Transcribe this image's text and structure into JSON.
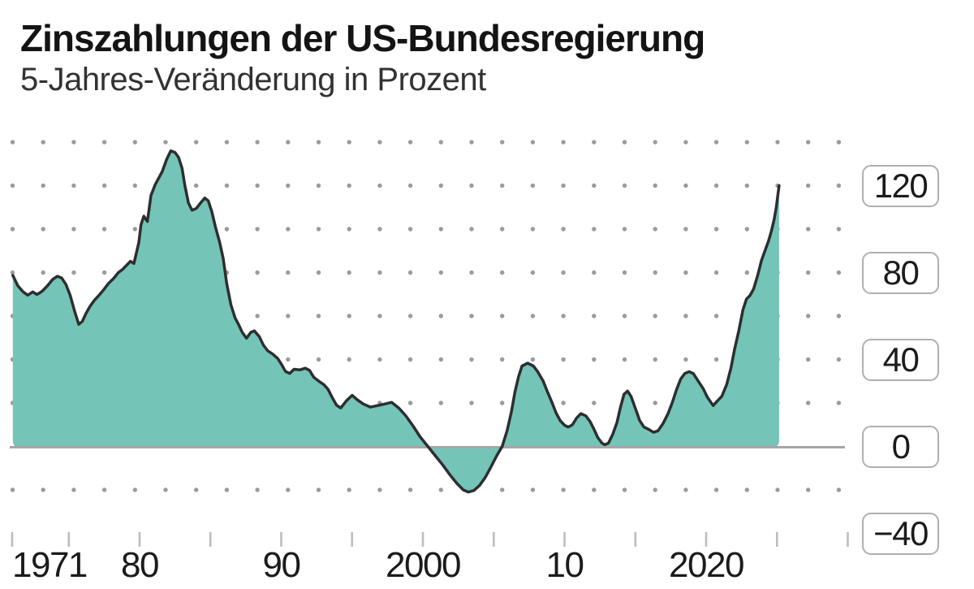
{
  "header": {
    "title": "Zinszahlungen der US-Bundesregierung",
    "subtitle": "5-Jahres-Veränderung in Prozent"
  },
  "colors": {
    "background": "#ffffff",
    "area_fill": "#74c4b8",
    "area_line": "#2e2e2e",
    "zero_axis": "#a6a6a6",
    "grid_dot": "#9b9b9b",
    "tick": "#bdbdbd",
    "label_box_border": "#b0b0b0",
    "label_text": "#1b1b1b"
  },
  "chart_data": {
    "type": "area",
    "title": "Zinszahlungen der US-Bundesregierung",
    "subtitle": "5-Jahres-Veränderung in Prozent",
    "ylabel": "Prozent",
    "grid": "dotted",
    "x_axis": {
      "range": [
        1971,
        2030
      ],
      "tick_years": [
        1971,
        1975,
        1980,
        1985,
        1990,
        1995,
        2000,
        2005,
        2010,
        2015,
        2020,
        2025,
        2030
      ],
      "labels": [
        {
          "year": 1971,
          "text": "1971",
          "align": "left"
        },
        {
          "year": 1980,
          "text": "80",
          "align": "center"
        },
        {
          "year": 1990,
          "text": "90",
          "align": "center"
        },
        {
          "year": 2000,
          "text": "2000",
          "align": "center"
        },
        {
          "year": 2010,
          "text": "10",
          "align": "center"
        },
        {
          "year": 2020,
          "text": "2020",
          "align": "center"
        }
      ]
    },
    "y_axis": {
      "range": [
        -40,
        140
      ],
      "zero_line": true,
      "dot_row_values": [
        140,
        120,
        100,
        80,
        60,
        40,
        20,
        -20
      ],
      "labels": [
        {
          "value": 120,
          "text": "120"
        },
        {
          "value": 80,
          "text": "80"
        },
        {
          "value": 40,
          "text": "40"
        },
        {
          "value": 0,
          "text": "0"
        },
        {
          "value": -40,
          "text": "−40"
        }
      ]
    },
    "series": [
      {
        "name": "5-Jahres-Veränderung der Zinszahlungen in Prozent",
        "points": [
          [
            1971.05,
            78.7
          ],
          [
            1971.4,
            74.0
          ],
          [
            1971.75,
            71.3
          ],
          [
            1972.1,
            69.6
          ],
          [
            1972.45,
            71.1
          ],
          [
            1972.75,
            69.9
          ],
          [
            1973.1,
            71.3
          ],
          [
            1973.5,
            74.0
          ],
          [
            1973.85,
            76.8
          ],
          [
            1974.2,
            78.3
          ],
          [
            1974.5,
            77.5
          ],
          [
            1974.8,
            74.5
          ],
          [
            1975.1,
            69.5
          ],
          [
            1975.4,
            62.5
          ],
          [
            1975.7,
            56.2
          ],
          [
            1975.95,
            57.5
          ],
          [
            1976.2,
            61.0
          ],
          [
            1976.5,
            64.5
          ],
          [
            1976.8,
            67.2
          ],
          [
            1977.1,
            69.3
          ],
          [
            1977.45,
            72.0
          ],
          [
            1977.8,
            75.0
          ],
          [
            1978.15,
            77.2
          ],
          [
            1978.5,
            80.0
          ],
          [
            1978.8,
            81.5
          ],
          [
            1979.1,
            83.5
          ],
          [
            1979.35,
            85.2
          ],
          [
            1979.6,
            84.2
          ],
          [
            1979.95,
            94.0
          ],
          [
            1980.1,
            102.0
          ],
          [
            1980.3,
            106.0
          ],
          [
            1980.55,
            103.5
          ],
          [
            1980.8,
            115.5
          ],
          [
            1981.1,
            120.5
          ],
          [
            1981.35,
            123.5
          ],
          [
            1981.6,
            126.5
          ],
          [
            1981.9,
            132.0
          ],
          [
            1982.2,
            136.0
          ],
          [
            1982.5,
            135.3
          ],
          [
            1982.75,
            133.0
          ],
          [
            1983.0,
            128.0
          ],
          [
            1983.2,
            120.0
          ],
          [
            1983.45,
            112.0
          ],
          [
            1983.7,
            108.7
          ],
          [
            1984.0,
            109.5
          ],
          [
            1984.3,
            112.0
          ],
          [
            1984.6,
            114.3
          ],
          [
            1984.85,
            113.0
          ],
          [
            1985.1,
            108.0
          ],
          [
            1985.35,
            101.0
          ],
          [
            1985.65,
            94.0
          ],
          [
            1985.9,
            86.5
          ],
          [
            1986.15,
            75.0
          ],
          [
            1986.45,
            65.0
          ],
          [
            1986.75,
            59.0
          ],
          [
            1987.0,
            56.0
          ],
          [
            1987.25,
            52.5
          ],
          [
            1987.55,
            49.8
          ],
          [
            1987.85,
            52.5
          ],
          [
            1988.1,
            53.2
          ],
          [
            1988.45,
            50.5
          ],
          [
            1988.75,
            46.5
          ],
          [
            1989.05,
            44.0
          ],
          [
            1989.4,
            42.5
          ],
          [
            1989.75,
            40.5
          ],
          [
            1990.0,
            38.0
          ],
          [
            1990.3,
            34.5
          ],
          [
            1990.6,
            33.6
          ],
          [
            1990.9,
            35.5
          ],
          [
            1991.3,
            35.2
          ],
          [
            1991.7,
            36.0
          ],
          [
            1992.0,
            35.0
          ],
          [
            1992.3,
            31.8
          ],
          [
            1992.7,
            29.8
          ],
          [
            1993.0,
            28.5
          ],
          [
            1993.3,
            26.3
          ],
          [
            1993.6,
            22.5
          ],
          [
            1993.9,
            19.0
          ],
          [
            1994.2,
            17.7
          ],
          [
            1994.6,
            21.0
          ],
          [
            1995.0,
            23.5
          ],
          [
            1995.4,
            21.3
          ],
          [
            1995.8,
            19.5
          ],
          [
            1996.3,
            18.1
          ],
          [
            1996.8,
            18.8
          ],
          [
            1997.3,
            19.5
          ],
          [
            1997.8,
            20.3
          ],
          [
            1998.3,
            17.7
          ],
          [
            1998.8,
            14.0
          ],
          [
            1999.3,
            9.5
          ],
          [
            1999.8,
            4.5
          ],
          [
            2000.35,
            0.0
          ],
          [
            2000.9,
            -4.5
          ],
          [
            2001.4,
            -8.5
          ],
          [
            2001.9,
            -13.0
          ],
          [
            2002.4,
            -17.0
          ],
          [
            2002.85,
            -20.0
          ],
          [
            2003.2,
            -21.0
          ],
          [
            2003.6,
            -20.3
          ],
          [
            2004.0,
            -18.0
          ],
          [
            2004.4,
            -14.3
          ],
          [
            2004.8,
            -9.5
          ],
          [
            2005.2,
            -4.5
          ],
          [
            2005.6,
            0.0
          ],
          [
            2005.95,
            7.3
          ],
          [
            2006.25,
            16.0
          ],
          [
            2006.5,
            25.0
          ],
          [
            2006.75,
            32.0
          ],
          [
            2007.0,
            37.0
          ],
          [
            2007.4,
            38.3
          ],
          [
            2007.8,
            37.0
          ],
          [
            2008.1,
            34.5
          ],
          [
            2008.5,
            30.0
          ],
          [
            2008.8,
            25.0
          ],
          [
            2009.1,
            20.5
          ],
          [
            2009.4,
            15.5
          ],
          [
            2009.7,
            11.8
          ],
          [
            2010.0,
            9.8
          ],
          [
            2010.25,
            8.9
          ],
          [
            2010.55,
            9.9
          ],
          [
            2010.85,
            13.0
          ],
          [
            2011.15,
            15.1
          ],
          [
            2011.5,
            14.1
          ],
          [
            2011.8,
            11.5
          ],
          [
            2012.05,
            8.3
          ],
          [
            2012.35,
            4.1
          ],
          [
            2012.65,
            1.5
          ],
          [
            2012.85,
            0.8
          ],
          [
            2013.1,
            1.5
          ],
          [
            2013.4,
            5.5
          ],
          [
            2013.7,
            11.0
          ],
          [
            2013.95,
            18.0
          ],
          [
            2014.2,
            24.0
          ],
          [
            2014.45,
            25.5
          ],
          [
            2014.7,
            23.0
          ],
          [
            2015.0,
            17.5
          ],
          [
            2015.3,
            12.0
          ],
          [
            2015.6,
            9.0
          ],
          [
            2015.95,
            7.8
          ],
          [
            2016.3,
            6.5
          ],
          [
            2016.6,
            7.2
          ],
          [
            2016.95,
            10.5
          ],
          [
            2017.3,
            15.0
          ],
          [
            2017.6,
            20.0
          ],
          [
            2017.9,
            26.0
          ],
          [
            2018.2,
            31.0
          ],
          [
            2018.5,
            33.6
          ],
          [
            2018.8,
            34.4
          ],
          [
            2019.1,
            33.5
          ],
          [
            2019.45,
            30.0
          ],
          [
            2019.8,
            26.5
          ],
          [
            2020.1,
            22.5
          ],
          [
            2020.5,
            18.8
          ],
          [
            2020.8,
            21.0
          ],
          [
            2021.1,
            23.0
          ],
          [
            2021.45,
            28.5
          ],
          [
            2021.75,
            36.0
          ],
          [
            2022.0,
            44.5
          ],
          [
            2022.3,
            53.0
          ],
          [
            2022.6,
            63.0
          ],
          [
            2022.85,
            67.8
          ],
          [
            2023.1,
            69.5
          ],
          [
            2023.35,
            72.5
          ],
          [
            2023.65,
            79.0
          ],
          [
            2023.9,
            85.5
          ],
          [
            2024.15,
            90.0
          ],
          [
            2024.4,
            94.5
          ],
          [
            2024.6,
            99.0
          ],
          [
            2024.8,
            104.5
          ],
          [
            2024.95,
            110.0
          ],
          [
            2025.05,
            115.0
          ],
          [
            2025.15,
            120.0
          ]
        ]
      }
    ]
  }
}
